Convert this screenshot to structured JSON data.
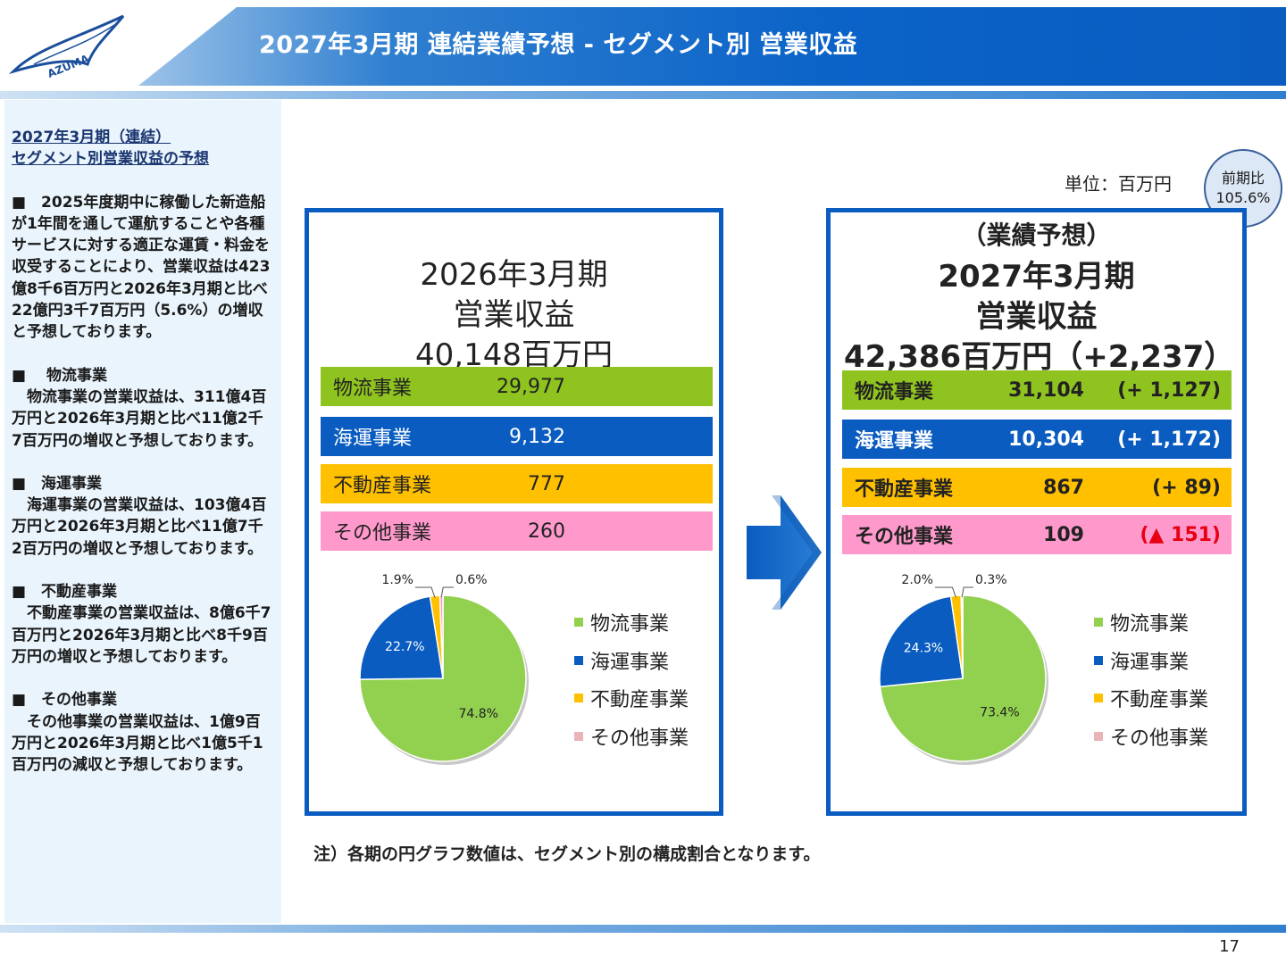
{
  "header": {
    "title": "2027年3月期 連結業績予想 - セグメント別 営業収益",
    "logo_text": "AZUMA"
  },
  "sidebar": {
    "title_line1": "2027年3月期（連結）",
    "title_line2": "セグメント別営業収益の予想",
    "paragraphs": [
      "■　2025年度期中に稼働した新造船が1年間を通して運航することや各種サービスに対する適正な運賃・料金を収受することにより、営業収益は423億8千6百万円と2026年3月期と比べ22億円3千7百万円（5.6%）の増収と予想しております。",
      "■　 物流事業\n　物流事業の営業収益は、311億4百万円と2026年3月期と比べ11億2千7百万円の増収と予想しております。",
      "■　海運事業\n　海運事業の営業収益は、103億4百万円と2026年3月期と比べ11億7千2百万円の増収と予想しております。",
      "■　不動産事業\n　不動産事業の営業収益は、8億6千7百万円と2026年3月期と比べ8千9百万円の増収と予想しております。",
      "■　その他事業\n　その他事業の営業収益は、1億9百万円と2026年3月期と比べ1億5千1百万円の減収と予想しております。"
    ]
  },
  "unit_label": "単位：百万円",
  "ratio": {
    "label": "前期比",
    "value": "105.6%"
  },
  "colors": {
    "logistics": "#8fc31f",
    "logistics_pie": "#92d050",
    "shipping": "#0a5cc0",
    "realestate": "#ffc000",
    "other": "#ff99cc",
    "other_legend": "#e8b4b8",
    "negative": "#e60012"
  },
  "left_panel": {
    "period": "2026年3月期",
    "label": "営業収益",
    "total": "40,148百万円",
    "segments": [
      {
        "name": "物流事業",
        "value": "29,977"
      },
      {
        "name": "海運事業",
        "value": "9,132"
      },
      {
        "name": "不動産事業",
        "value": "777"
      },
      {
        "name": "その他事業",
        "value": "260"
      }
    ]
  },
  "right_panel": {
    "tag": "（業績予想）",
    "period": "2027年3月期",
    "label": "営業収益",
    "total": "42,386百万円（+2,237）",
    "segments": [
      {
        "name": "物流事業",
        "value": "31,104",
        "diff": "(+ 1,127)"
      },
      {
        "name": "海運事業",
        "value": "10,304",
        "diff": "(+ 1,172)"
      },
      {
        "name": "不動産事業",
        "value": "867",
        "diff": "(+ 89)"
      },
      {
        "name": "その他事業",
        "value": "109",
        "diff": "(▲ 151)"
      }
    ]
  },
  "legend": [
    "物流事業",
    "海運事業",
    "不動産事業",
    "その他事業"
  ],
  "chart_data": [
    {
      "type": "pie",
      "categories": [
        "物流事業",
        "海運事業",
        "不動産事業",
        "その他事業"
      ],
      "values": [
        74.8,
        22.7,
        1.9,
        0.6
      ],
      "labels": [
        "74.8%",
        "22.7%",
        "1.9%",
        "0.6%"
      ]
    },
    {
      "type": "pie",
      "categories": [
        "物流事業",
        "海運事業",
        "不動産事業",
        "その他事業"
      ],
      "values": [
        73.4,
        24.3,
        2.0,
        0.3
      ],
      "labels": [
        "73.4%",
        "24.3%",
        "2.0%",
        "0.3%"
      ]
    }
  ],
  "note": "注）各期の円グラフ数値は、セグメント別の構成割合となります。",
  "page_number": "17"
}
